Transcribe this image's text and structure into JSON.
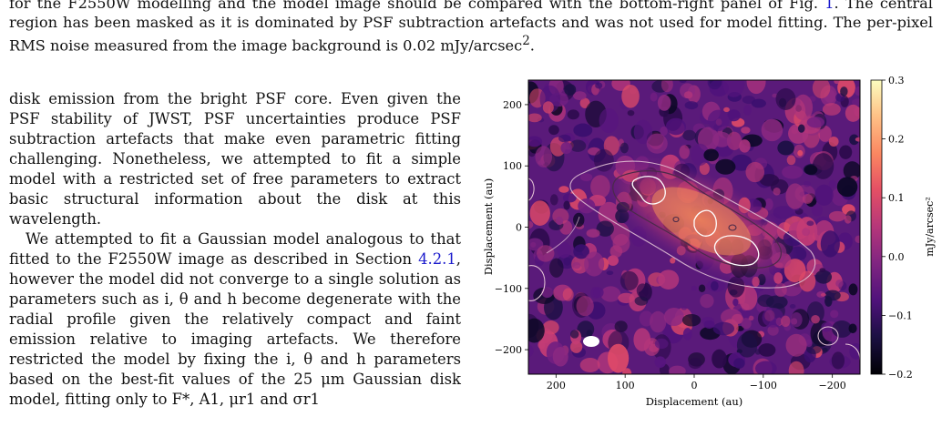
{
  "caption": {
    "line1": "for the F2550W modelling and the model image should be compared with the bottom-right panel of Fig. ",
    "fig_ref": "1",
    "line1_end": ". The central region",
    "line2": "has been masked as it is dominated by PSF subtraction artefacts and was not used for model fitting. The per-pixel RMS noise",
    "line3": "measured from the image background is 0.02 mJy/arcsec",
    "line3_sup": "2",
    "line3_end": "."
  },
  "body": {
    "para1": "disk emission from the bright PSF core.  Even given the PSF stability of JWST, PSF uncertainties produce PSF subtraction artefacts that make even parametric fitting challenging.  Nonetheless, we attempted to fit a simple model with a restricted set of free parameters to extract basic structural information about the disk at this wavelength.",
    "para2_a": "We attempted to fit a Gaussian model analogous to that fitted to the F2550W image as described in Section ",
    "para2_ref": "4.2.1",
    "para2_b": ", however the model did not converge to a single solution as parameters such as i, θ and h become degenerate with the radial profile given the relatively compact and faint emission relative to imaging artefacts. We therefore restricted the model by fixing the i, θ and h parameters based on the best-fit values of the 25 μm Gaussian disk model, fitting only to F*, A1, μr1 and σr1"
  },
  "figure": {
    "colors": {
      "link": "#1a1acc",
      "contour_dark": "#4a2a4a",
      "contour_light": "#ffffff"
    },
    "colormap": "magma"
  },
  "chart_data": {
    "type": "heatmap",
    "xlabel": "Displacement (au)",
    "ylabel": "Displacement (au)",
    "x_ticks": [
      "200",
      "100",
      "0",
      "−100",
      "−200"
    ],
    "y_ticks": [
      "200",
      "100",
      "0",
      "−100",
      "−200"
    ],
    "xlim": [
      240,
      -240
    ],
    "ylim": [
      -240,
      240
    ],
    "colorbar_label": "mJy/arcsec²",
    "colorbar_ticks": [
      "0.3",
      "0.2",
      "0.1",
      "0.0",
      "−0.1",
      "−0.2"
    ],
    "colorbar_values": [
      0.3,
      0.2,
      0.1,
      0.0,
      -0.1,
      -0.2
    ],
    "colorbar_range": [
      -0.2,
      0.3
    ],
    "beam_marker": "white ellipse, bottom-left"
  }
}
